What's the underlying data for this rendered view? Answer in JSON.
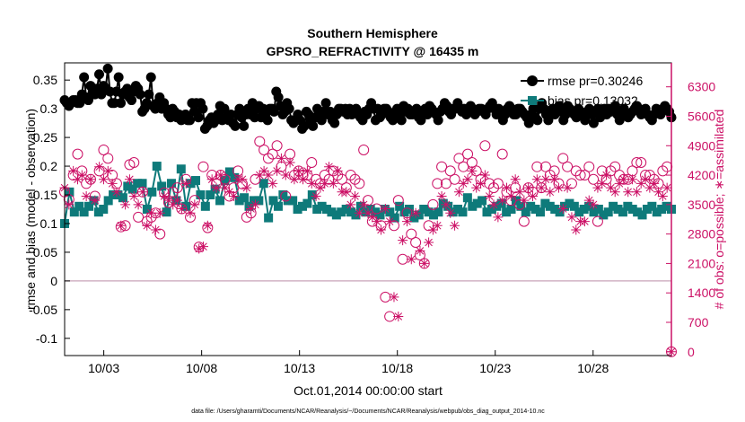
{
  "chart_data": {
    "type": "line",
    "title": [
      "Southern Hemisphere",
      "GPSRO_REFRACTIVITY @ 16435 m"
    ],
    "xlabel": "Oct.01,2014 00:00:00 start",
    "ylabel_left": "rmse and bias (model - observation)",
    "ylabel_right": "# of obs: o=possible; ∗=assimilated",
    "footer": "data file: /Users/gharamti/Documents/NCAR/Reanalysis/~/Documents/NCAR/Reanalysis/webpub/obs_diag_output_2014-10.nc",
    "xlim": [
      0,
      124
    ],
    "ylim_left": [
      -0.13,
      0.38
    ],
    "ylim_right": [
      -90,
      6870
    ],
    "xticks": [
      {
        "x": 8,
        "label": "10/03"
      },
      {
        "x": 28,
        "label": "10/08"
      },
      {
        "x": 48,
        "label": "10/13"
      },
      {
        "x": 68,
        "label": "10/18"
      },
      {
        "x": 88,
        "label": "10/23"
      },
      {
        "x": 108,
        "label": "10/28"
      }
    ],
    "yticks_left": [
      "-0.1",
      "-0.05",
      "0",
      "0.05",
      "0.1",
      "0.15",
      "0.2",
      "0.25",
      "0.3",
      "0.35"
    ],
    "yticks_right": [
      "0",
      "700",
      "1400",
      "2100",
      "2800",
      "3500",
      "4200",
      "4900",
      "5600",
      "6300"
    ],
    "zero_line": 0,
    "legend": [
      {
        "name": "rmse pr=0.30246",
        "color": "#000000",
        "marker": "circle"
      },
      {
        "name": "bias pr=0.13032",
        "color": "#0e7a7a",
        "marker": "square"
      }
    ],
    "colors": {
      "rmse": "#000000",
      "bias": "#0e7a7a",
      "obs": "#cc1166",
      "zero": "#c9a3b8"
    },
    "series": [
      {
        "name": "rmse",
        "axis": "left",
        "values": [
          0.315,
          0.31,
          0.305,
          0.31,
          0.315,
          0.315,
          0.31,
          0.31,
          0.325,
          0.355,
          0.32,
          0.315,
          0.34,
          0.33,
          0.325,
          0.335,
          0.36,
          0.325,
          0.34,
          0.335,
          0.37,
          0.33,
          0.31,
          0.31,
          0.33,
          0.355,
          0.31,
          0.325,
          0.33,
          0.335,
          0.32,
          0.315,
          0.33,
          0.34,
          0.335,
          0.325,
          0.295,
          0.3,
          0.31,
          0.325,
          0.355,
          0.305,
          0.3,
          0.31,
          0.32,
          0.3,
          0.31,
          0.3,
          0.29,
          0.285,
          0.3,
          0.295,
          0.285,
          0.29,
          0.28,
          0.285,
          0.29,
          0.28,
          0.28,
          0.31,
          0.295,
          0.31,
          0.285,
          0.31,
          0.3,
          0.265,
          0.27,
          0.28,
          0.285,
          0.275,
          0.28,
          0.29,
          0.305,
          0.28,
          0.3,
          0.285,
          0.28,
          0.29,
          0.275,
          0.27,
          0.29,
          0.3,
          0.285,
          0.27,
          0.29,
          0.3,
          0.29,
          0.31,
          0.285,
          0.3,
          0.305,
          0.285,
          0.3,
          0.29,
          0.28,
          0.3,
          0.3,
          0.295,
          0.33,
          0.32,
          0.305,
          0.29,
          0.295,
          0.31,
          0.3,
          0.28,
          0.275,
          0.28,
          0.29,
          0.28,
          0.265,
          0.27,
          0.295,
          0.29,
          0.28,
          0.27,
          0.285,
          0.3,
          0.29,
          0.28,
          0.295,
          0.31,
          0.29,
          0.295,
          0.28,
          0.275,
          0.29,
          0.3,
          0.3,
          0.295,
          0.3,
          0.29,
          0.3,
          0.29,
          0.295,
          0.3,
          0.29,
          0.285,
          0.28,
          0.295,
          0.29,
          0.3,
          0.31,
          0.3,
          0.28,
          0.3,
          0.285,
          0.29,
          0.3,
          0.3,
          0.295,
          0.285,
          0.28,
          0.29,
          0.3,
          0.295,
          0.28,
          0.305,
          0.295,
          0.3,
          0.29,
          0.29,
          0.295,
          0.3,
          0.285,
          0.28,
          0.295,
          0.3,
          0.29,
          0.305,
          0.3,
          0.295,
          0.29,
          0.28,
          0.295,
          0.3,
          0.31,
          0.305,
          0.295,
          0.29,
          0.3,
          0.3,
          0.31,
          0.3,
          0.295,
          0.3,
          0.29,
          0.295,
          0.305,
          0.3,
          0.29,
          0.295,
          0.3,
          0.3,
          0.295,
          0.29,
          0.3,
          0.305,
          0.31,
          0.3,
          0.29,
          0.3,
          0.295,
          0.28,
          0.29,
          0.3,
          0.305,
          0.3,
          0.29,
          0.29,
          0.3,
          0.3,
          0.295,
          0.29,
          0.285,
          0.275,
          0.29,
          0.3,
          0.285,
          0.28,
          0.3,
          0.31,
          0.3,
          0.29,
          0.28,
          0.295,
          0.3,
          0.29,
          0.3,
          0.305,
          0.295,
          0.28,
          0.29,
          0.305,
          0.3,
          0.295,
          0.29,
          0.285,
          0.3,
          0.295,
          0.29,
          0.28,
          0.295,
          0.3,
          0.29,
          0.275,
          0.295,
          0.3,
          0.285,
          0.29,
          0.3,
          0.29,
          0.3,
          0.295,
          0.3,
          0.305,
          0.29,
          0.28,
          0.295,
          0.3,
          0.29,
          0.285,
          0.29,
          0.295,
          0.3,
          0.305,
          0.3,
          0.29,
          0.295,
          0.3,
          0.29,
          0.285,
          0.28,
          0.29,
          0.3,
          0.295,
          0.29,
          0.3,
          0.305,
          0.3,
          0.295,
          0.285
        ]
      },
      {
        "name": "bias",
        "axis": "left",
        "values": [
          0.1,
          0.155,
          0.12,
          0.13,
          0.12,
          0.13,
          0.14,
          0.12,
          0.125,
          0.14,
          0.15,
          0.15,
          0.145,
          0.165,
          0.16,
          0.17,
          0.17,
          0.125,
          0.155,
          0.2,
          0.165,
          0.12,
          0.17,
          0.14,
          0.195,
          0.13,
          0.17,
          0.175,
          0.15,
          0.13,
          0.15,
          0.16,
          0.14,
          0.175,
          0.19,
          0.18,
          0.14,
          0.145,
          0.13,
          0.14,
          0.14,
          0.17,
          0.11,
          0.14,
          0.13,
          0.15,
          0.14,
          0.14,
          0.125,
          0.13,
          0.135,
          0.15,
          0.125,
          0.13,
          0.125,
          0.12,
          0.115,
          0.12,
          0.125,
          0.12,
          0.115,
          0.13,
          0.12,
          0.125,
          0.12,
          0.115,
          0.125,
          0.12,
          0.11,
          0.13,
          0.12,
          0.125,
          0.11,
          0.115,
          0.125,
          0.12,
          0.115,
          0.12,
          0.135,
          0.13,
          0.12,
          0.125,
          0.12,
          0.145,
          0.13,
          0.135,
          0.14,
          0.12,
          0.125,
          0.13,
          0.135,
          0.12,
          0.125,
          0.14,
          0.13,
          0.12,
          0.13,
          0.125,
          0.12,
          0.135,
          0.13,
          0.125,
          0.12,
          0.13,
          0.135,
          0.13,
          0.12,
          0.125,
          0.13,
          0.12,
          0.125,
          0.115,
          0.12,
          0.13,
          0.125,
          0.12,
          0.13,
          0.125,
          0.12,
          0.115,
          0.125,
          0.13,
          0.12,
          0.125,
          0.13,
          0.125
        ]
      },
      {
        "name": "obs possible",
        "axis": "right",
        "values": [
          3800,
          3620,
          4200,
          4700,
          4300,
          4000,
          4100,
          3700,
          4300,
          4800,
          4600,
          4200,
          4000,
          2970,
          3000,
          4450,
          4500,
          3200,
          3800,
          3100,
          3200,
          3300,
          2800,
          3780,
          3550,
          3800,
          3900,
          3400,
          4100,
          3200,
          3600,
          2490,
          4400,
          2950,
          4200,
          4000,
          4200,
          4100,
          3700,
          3900,
          4300,
          3990,
          3200,
          3300,
          4100,
          5000,
          4800,
          4600,
          4700,
          4900,
          4400,
          3700,
          4700,
          4200,
          4300,
          4200,
          4200,
          4500,
          4100,
          4000,
          4200,
          4100,
          4300,
          4200,
          4100,
          3900,
          4200,
          4100,
          4000,
          4800,
          3600,
          3100,
          3400,
          3000,
          1300,
          840,
          3000,
          3600,
          2200,
          3300,
          2800,
          2600,
          2300,
          2100,
          3000,
          3500,
          4000,
          4400,
          4000,
          4300,
          4100,
          4600,
          4400,
          4700,
          4500,
          4300,
          4100,
          4900,
          4000,
          3900,
          4000,
          4700,
          3800,
          3600,
          3900,
          3500,
          3100,
          3900,
          3800,
          4400,
          3900,
          4400,
          4200,
          4300,
          4000,
          4600,
          4400,
          4000,
          4300,
          4200,
          4200,
          4400,
          4100,
          3100,
          4300,
          4100,
          4300,
          4400,
          4200,
          4100,
          4100,
          4300,
          4500,
          4500,
          4200,
          4200,
          4100,
          4000,
          4300,
          4400,
          0
        ]
      },
      {
        "name": "obs assimilated",
        "axis": "right",
        "values": [
          3900,
          3500,
          4300,
          4100,
          4200,
          3700,
          4100,
          3600,
          4400,
          4100,
          4300,
          4000,
          3800,
          3000,
          3500,
          4100,
          3700,
          3500,
          3800,
          3000,
          3300,
          2900,
          3300,
          3700,
          3600,
          3500,
          3600,
          3400,
          4000,
          3300,
          3500,
          2450,
          2500,
          3000,
          4100,
          3900,
          4200,
          3900,
          3800,
          3700,
          4100,
          4100,
          3900,
          3400,
          3500,
          4200,
          4300,
          4200,
          4000,
          4300,
          4600,
          4200,
          4500,
          4100,
          4300,
          4100,
          4300,
          4000,
          3700,
          3900,
          4000,
          4400,
          4000,
          4300,
          3800,
          3800,
          3500,
          3700,
          3300,
          3500,
          3300,
          3200,
          3100,
          2900,
          3400,
          3100,
          1300,
          840,
          2650,
          3100,
          2200,
          3300,
          2400,
          2100,
          2600,
          2900,
          3000,
          3700,
          3500,
          3300,
          3000,
          3800,
          4000,
          4100,
          4300,
          3900,
          4000,
          4200,
          3700,
          3500,
          3200,
          3600,
          3900,
          3700,
          4100,
          3800,
          3600,
          3900,
          3700,
          4100,
          3900,
          4100,
          3800,
          4100,
          3900,
          3400,
          3900,
          3200,
          2900,
          3100,
          3100,
          3600,
          3500,
          3900,
          4000,
          4200,
          3900,
          3800,
          4000,
          4100,
          3800,
          4100,
          3800,
          4000,
          4100,
          3900,
          4000,
          3800,
          3700,
          3900,
          0
        ]
      }
    ]
  }
}
